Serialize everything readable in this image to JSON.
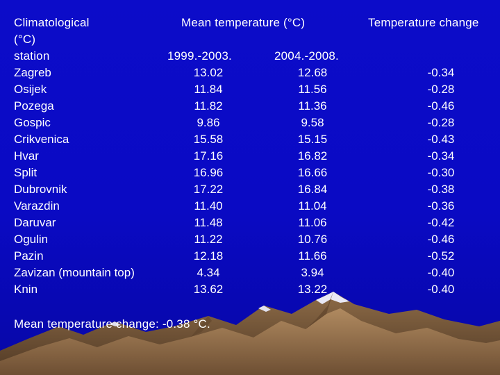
{
  "header": {
    "station_label_line1": "Climatological",
    "station_label_line2": "(°C)",
    "station_label_line3": "station",
    "mean_temperature_label": "Mean temperature (°C)",
    "temperature_change_label": "Temperature change",
    "period1": "1999.-2003.",
    "period2": "2004.-2008."
  },
  "rows": [
    {
      "station": "Zagreb",
      "v1": "13.02",
      "v2": "12.68",
      "change": "-0.34"
    },
    {
      "station": "Osijek",
      "v1": "11.84",
      "v2": "11.56",
      "change": "-0.28"
    },
    {
      "station": "Pozega",
      "v1": "11.82",
      "v2": "11.36",
      "change": "-0.46"
    },
    {
      "station": "Gospic",
      "v1": "9.86",
      "v2": "9.58",
      "change": "-0.28"
    },
    {
      "station": "Crikvenica",
      "v1": "15.58",
      "v2": "15.15",
      "change": "-0.43"
    },
    {
      "station": "Hvar",
      "v1": "17.16",
      "v2": "16.82",
      "change": "-0.34"
    },
    {
      "station": "Split",
      "v1": "16.96",
      "v2": "16.66",
      "change": "-0.30"
    },
    {
      "station": "Dubrovnik",
      "v1": "17.22",
      "v2": "16.84",
      "change": "-0.38"
    },
    {
      "station": "Varazdin",
      "v1": "11.40",
      "v2": "11.04",
      "change": "-0.36"
    },
    {
      "station": "Daruvar",
      "v1": "11.48",
      "v2": "11.06",
      "change": "-0.42"
    },
    {
      "station": "Ogulin",
      "v1": "11.22",
      "v2": "10.76",
      "change": "-0.46"
    },
    {
      "station": "Pazin",
      "v1": "12.18",
      "v2": "11.66",
      "change": "-0.52"
    },
    {
      "station": "Zavizan (mountain top)",
      "v1": "4.34",
      "v2": "3.94",
      "change": "-0.40"
    },
    {
      "station": "Knin",
      "v1": "13.62",
      "v2": "13.22",
      "change": "-0.40"
    }
  ],
  "summary": "Mean temperature change:  -0.38 °C.",
  "colors": {
    "background": "#0b0bc8",
    "text": "#ffffff",
    "mountain": "#a07850",
    "snow": "#e8e8f4"
  }
}
